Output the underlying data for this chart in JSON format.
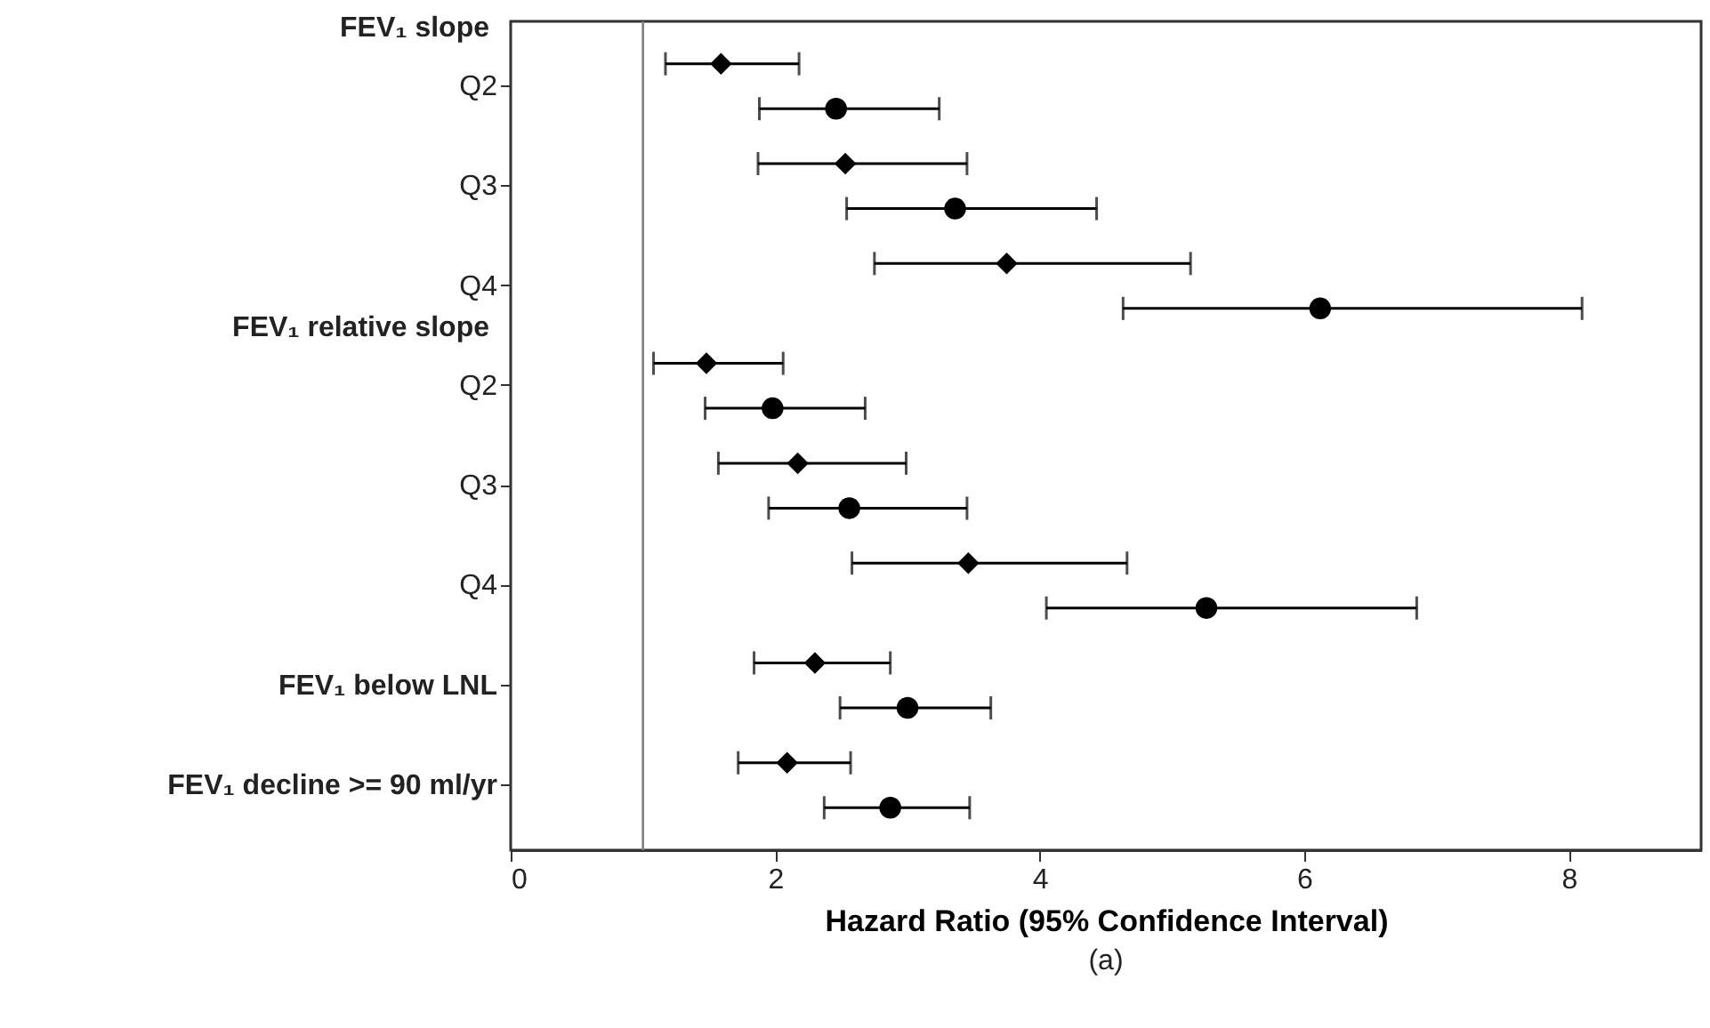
{
  "chart_data": {
    "type": "scatter",
    "orientation": "horizontal",
    "title": "(a)",
    "xlabel": "Hazard Ratio (95% Confidence Interval)",
    "categories": [
      "Q2",
      "Q3",
      "Q4",
      "Q2",
      "Q3",
      "Q4",
      "FEV₁ below LNL",
      "FEV₁ decline >= 90 ml/yr"
    ],
    "annotations": [
      "FEV₁ slope",
      "FEV₁ relative slope"
    ],
    "xlim": [
      0,
      9
    ],
    "xticks": [
      0,
      2,
      4,
      6,
      8
    ],
    "grid": false,
    "ref_lines": [
      {
        "axis": "x",
        "value": 1,
        "color": "#808080"
      }
    ],
    "series": [
      {
        "color": "#000000",
        "marker": "diamond",
        "values": [
          1.59,
          2.53,
          3.75,
          1.48,
          2.17,
          3.46,
          2.3,
          2.09
        ],
        "errors": [
          [
            1.17,
            2.18
          ],
          [
            1.87,
            3.45
          ],
          [
            2.75,
            5.14
          ],
          [
            1.08,
            2.06
          ],
          [
            1.57,
            2.99
          ],
          [
            2.58,
            4.66
          ],
          [
            1.84,
            2.87
          ],
          [
            1.72,
            2.57
          ]
        ]
      },
      {
        "color": "#000000",
        "marker": "circle",
        "values": [
          2.46,
          3.36,
          6.12,
          1.98,
          2.56,
          5.26,
          3.0,
          2.87
        ],
        "errors": [
          [
            1.88,
            3.24
          ],
          [
            2.54,
            4.43
          ],
          [
            4.63,
            8.1
          ],
          [
            1.47,
            2.68
          ],
          [
            1.95,
            3.45
          ],
          [
            4.05,
            6.85
          ],
          [
            2.49,
            3.63
          ],
          [
            2.37,
            3.47
          ]
        ]
      }
    ]
  }
}
